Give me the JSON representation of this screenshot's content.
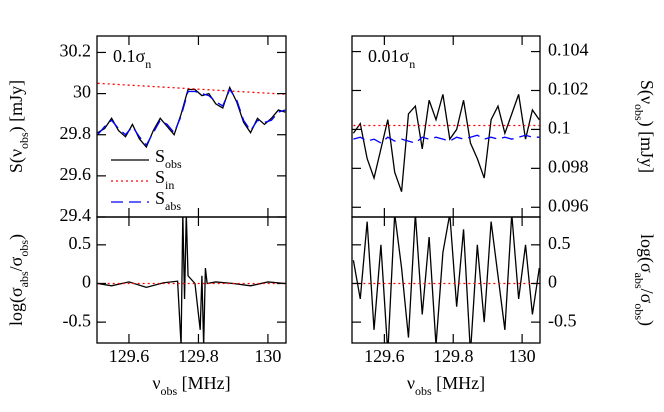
{
  "chart_data": [
    {
      "type": "line",
      "annotation": [
        "0.1σ",
        "n"
      ],
      "ylabel": [
        "S(ν",
        "obs",
        ") [mJy]"
      ],
      "xlim": [
        129.508,
        130.052
      ],
      "ylim": [
        29.4,
        30.28
      ],
      "xticks": [
        129.6,
        129.8,
        130
      ],
      "yticks": [
        29.4,
        29.6,
        29.8,
        30,
        30.2
      ],
      "xtick_labels": false,
      "yaxis_side": "left",
      "legend": true,
      "x": [
        129.51,
        129.53,
        129.55,
        129.57,
        129.59,
        129.61,
        129.63,
        129.65,
        129.67,
        129.69,
        129.71,
        129.73,
        129.75,
        129.77,
        129.79,
        129.81,
        129.83,
        129.85,
        129.87,
        129.89,
        129.91,
        129.93,
        129.95,
        129.97,
        129.99,
        130.01,
        130.03,
        130.05
      ],
      "series": [
        {
          "name": [
            "S",
            "obs"
          ],
          "color": "#000000",
          "style": "solid",
          "values": [
            29.81,
            29.83,
            29.88,
            29.82,
            29.79,
            29.85,
            29.78,
            29.74,
            29.82,
            29.88,
            29.84,
            29.8,
            29.9,
            30.02,
            30.02,
            29.99,
            30.0,
            29.95,
            29.93,
            30.03,
            29.96,
            29.86,
            29.81,
            29.88,
            29.85,
            29.88,
            29.92,
            29.91
          ]
        },
        {
          "name": [
            "S",
            "in"
          ],
          "color": "#ff0000",
          "style": "dotted",
          "x": [
            129.51,
            130.05
          ],
          "values": [
            30.05,
            29.997
          ]
        },
        {
          "name": [
            "S",
            "abs"
          ],
          "color": "#0000ff",
          "style": "dashed",
          "values": [
            29.8,
            29.84,
            29.87,
            29.83,
            29.8,
            29.84,
            29.79,
            29.75,
            29.81,
            29.87,
            29.85,
            29.81,
            29.89,
            30.01,
            30.01,
            30.0,
            29.99,
            29.96,
            29.94,
            30.02,
            29.97,
            29.87,
            29.82,
            29.87,
            29.86,
            29.87,
            29.91,
            29.92
          ]
        }
      ]
    },
    {
      "type": "line",
      "annotation": [
        "0.01σ",
        "n"
      ],
      "ylabel": [
        "S(ν",
        "obs",
        ") [mJy]"
      ],
      "xlim": [
        129.506,
        130.052
      ],
      "ylim": [
        0.0955,
        0.1048
      ],
      "xticks": [
        129.6,
        129.8,
        130
      ],
      "yticks": [
        0.096,
        0.098,
        0.1,
        0.102,
        0.104
      ],
      "xtick_labels": false,
      "yaxis_side": "right",
      "legend": false,
      "x": [
        129.51,
        129.53,
        129.55,
        129.57,
        129.59,
        129.61,
        129.63,
        129.65,
        129.67,
        129.69,
        129.71,
        129.73,
        129.75,
        129.77,
        129.79,
        129.81,
        129.83,
        129.85,
        129.87,
        129.89,
        129.91,
        129.93,
        129.95,
        129.97,
        129.99,
        130.01,
        130.03,
        130.05
      ],
      "series": [
        {
          "name": [
            "S",
            "obs"
          ],
          "color": "#000000",
          "style": "solid",
          "values": [
            0.0998,
            0.1003,
            0.0985,
            0.0975,
            0.099,
            0.1005,
            0.0978,
            0.0968,
            0.1008,
            0.1012,
            0.099,
            0.1015,
            0.1005,
            0.1018,
            0.0995,
            0.1,
            0.1015,
            0.0993,
            0.0985,
            0.0975,
            0.1005,
            0.1012,
            0.0998,
            0.1008,
            0.1018,
            0.0995,
            0.101,
            0.1005
          ]
        },
        {
          "name": [
            "S",
            "in"
          ],
          "color": "#ff0000",
          "style": "dotted",
          "x": [
            129.51,
            130.05
          ],
          "values": [
            0.1002,
            0.1002
          ]
        },
        {
          "name": [
            "S",
            "abs"
          ],
          "color": "#0000ff",
          "style": "dashed",
          "values": [
            0.0995,
            0.0996,
            0.0994,
            0.0995,
            0.0993,
            0.0996,
            0.0994,
            0.0995,
            0.0994,
            0.0993,
            0.0996,
            0.0995,
            0.0996,
            0.0995,
            0.0994,
            0.0996,
            0.0995,
            0.0996,
            0.0997,
            0.0995,
            0.0996,
            0.0995,
            0.0996,
            0.0995,
            0.0996,
            0.0997,
            0.0996,
            0.0996
          ]
        }
      ]
    },
    {
      "type": "line",
      "ylabel": [
        "log(σ",
        "abs",
        "/σ",
        "obs",
        ")"
      ],
      "xlabel": [
        "ν",
        "obs",
        " [MHz]"
      ],
      "xlim": [
        129.508,
        130.052
      ],
      "ylim": [
        -0.77,
        0.86
      ],
      "xticks": [
        129.6,
        129.8,
        130
      ],
      "yticks": [
        -0.5,
        0,
        0.5
      ],
      "xtick_labels": true,
      "yaxis_side": "left",
      "legend": false,
      "x": [
        129.51,
        129.55,
        129.6,
        129.65,
        129.7,
        129.74,
        129.75,
        129.755,
        129.76,
        129.765,
        129.77,
        129.79,
        129.805,
        129.81,
        129.815,
        129.82,
        129.825,
        129.85,
        129.9,
        129.95,
        130.0,
        130.05
      ],
      "series": [
        {
          "name": [
            "S",
            "obs"
          ],
          "color": "#000000",
          "style": "solid",
          "values": [
            0,
            -0.03,
            0.02,
            -0.05,
            0.01,
            0.03,
            -0.8,
            0.9,
            -0.2,
            0.9,
            0.1,
            0,
            -0.6,
            0.1,
            -0.8,
            0.2,
            0,
            0.02,
            0,
            -0.03,
            0.02,
            0
          ]
        },
        {
          "name": [
            "S",
            "in"
          ],
          "color": "#ff0000",
          "style": "dotted",
          "x": [
            129.51,
            130.05
          ],
          "values": [
            0,
            0
          ]
        }
      ]
    },
    {
      "type": "line",
      "ylabel": [
        "log(σ",
        "abs",
        "/σ",
        "obs",
        ")"
      ],
      "xlabel": [
        "ν",
        "obs",
        " [MHz]"
      ],
      "xlim": [
        129.506,
        130.052
      ],
      "ylim": [
        -0.77,
        0.86
      ],
      "xticks": [
        129.6,
        129.8,
        130
      ],
      "yticks": [
        -0.5,
        0,
        0.5
      ],
      "xtick_labels": true,
      "yaxis_side": "right",
      "legend": false,
      "x": [
        129.51,
        129.53,
        129.55,
        129.57,
        129.59,
        129.61,
        129.63,
        129.65,
        129.67,
        129.69,
        129.71,
        129.73,
        129.75,
        129.77,
        129.79,
        129.81,
        129.83,
        129.85,
        129.87,
        129.89,
        129.91,
        129.93,
        129.95,
        129.97,
        129.99,
        130.01,
        130.03,
        130.05
      ],
      "series": [
        {
          "name": [
            "S",
            "obs"
          ],
          "color": "#000000",
          "style": "solid",
          "values": [
            0.3,
            -0.2,
            0.8,
            -0.6,
            0.5,
            -0.9,
            0.9,
            0.2,
            -0.7,
            0.9,
            -0.4,
            0.6,
            -0.8,
            0.4,
            0.9,
            -0.3,
            0.7,
            -0.9,
            0.5,
            -0.5,
            0.8,
            0.1,
            -0.6,
            0.9,
            -0.2,
            0.5,
            -0.4,
            0.2
          ]
        },
        {
          "name": [
            "S",
            "in"
          ],
          "color": "#ff0000",
          "style": "dotted",
          "x": [
            129.51,
            130.05
          ],
          "values": [
            0,
            0
          ]
        }
      ]
    }
  ]
}
